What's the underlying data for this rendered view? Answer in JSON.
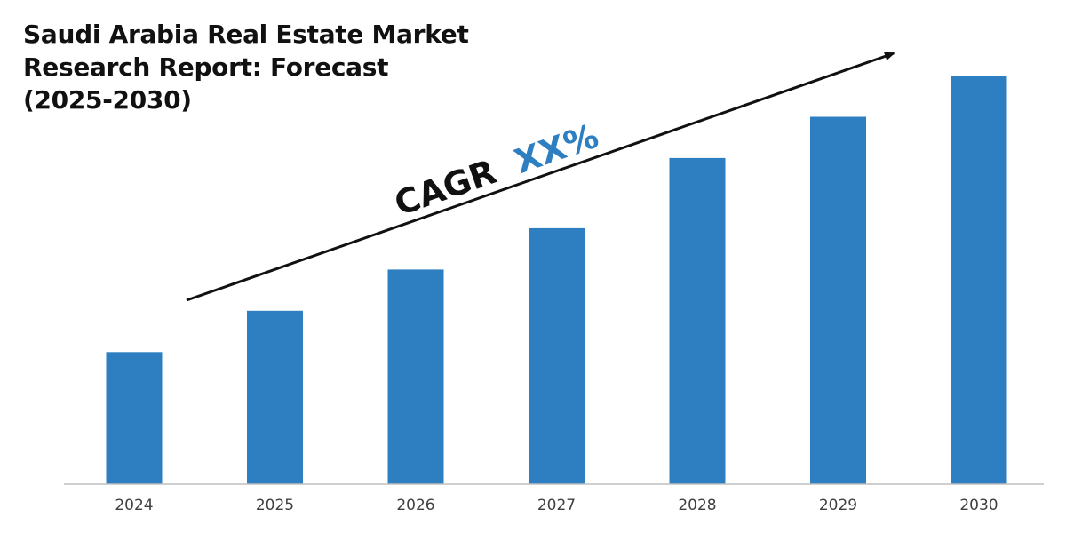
{
  "title_lines": [
    "Saudi Arabia Real Estate Market",
    "Research Report: Forecast",
    "(2025-2030)"
  ],
  "annotation": {
    "prefix": "CAGR",
    "value": "XX%"
  },
  "colors": {
    "bar": "#2e7fc1",
    "axis": "#bfbfbf",
    "arrow": "#111111",
    "cagr_prefix": "#111111",
    "cagr_value": "#2e7fc1"
  },
  "chart_data": {
    "type": "bar",
    "categories": [
      "2024",
      "2025",
      "2026",
      "2027",
      "2028",
      "2029",
      "2030"
    ],
    "values": [
      32,
      42,
      52,
      62,
      79,
      89,
      99
    ],
    "ylim": [
      0,
      100
    ],
    "grid": false,
    "legend": "none"
  }
}
